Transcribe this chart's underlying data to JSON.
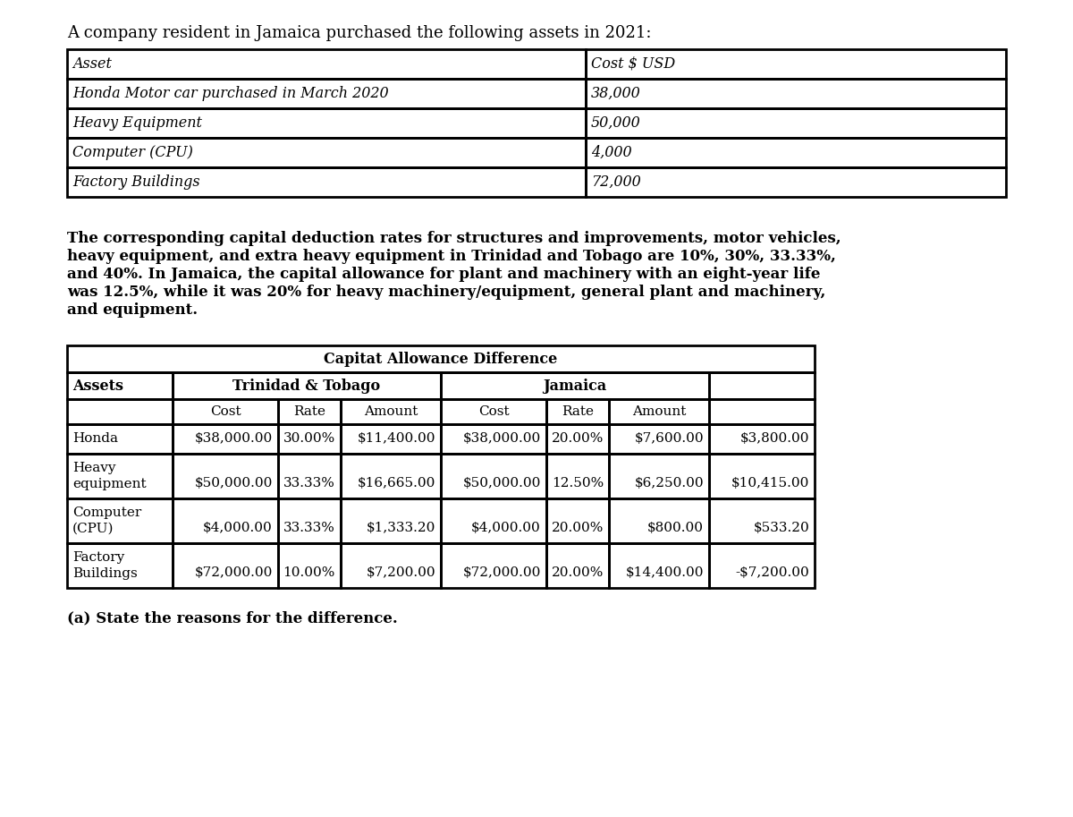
{
  "title_text": "A company resident in Jamaica purchased the following assets in 2021:",
  "table1_headers": [
    "Asset",
    "Cost $ USD"
  ],
  "table1_rows": [
    [
      "Honda Motor car purchased in March 2020",
      "38,000"
    ],
    [
      "Heavy Equipment",
      "50,000"
    ],
    [
      "Computer (CPU)",
      "4,000"
    ],
    [
      "Factory Buildings",
      "72,000"
    ]
  ],
  "paragraph_lines": [
    "The corresponding capital deduction rates for structures and improvements, motor vehicles,",
    "heavy equipment, and extra heavy equipment in Trinidad and Tobago are 10%, 30%, 33.33%,",
    "and 40%. In Jamaica, the capital allowance for plant and machinery with an eight-year life",
    "was 12.5%, while it was 20% for heavy machinery/equipment, general plant and machinery,",
    "and equipment."
  ],
  "table2_main_header": "Capitat Allowance Difference",
  "table2_col_headers": [
    "",
    "Cost",
    "Rate",
    "Amount",
    "Cost",
    "Rate",
    "Amount",
    ""
  ],
  "table2_rows": [
    [
      "Honda",
      "$38,000.00",
      "30.00%",
      "$11,400.00",
      "$38,000.00",
      "20.00%",
      "$7,600.00",
      "$3,800.00"
    ],
    [
      "Heavy\nequipment",
      "$50,000.00",
      "33.33%",
      "$16,665.00",
      "$50,000.00",
      "12.50%",
      "$6,250.00",
      "$10,415.00"
    ],
    [
      "Computer\n(CPU)",
      "$4,000.00",
      "33.33%",
      "$1,333.20",
      "$4,000.00",
      "20.00%",
      "$800.00",
      "$533.20"
    ],
    [
      "Factory\nBuildings",
      "$72,000.00",
      "10.00%",
      "$7,200.00",
      "$72,000.00",
      "20.00%",
      "$14,400.00",
      "-$7,200.00"
    ]
  ],
  "footnote": "(a) State the reasons for the difference.",
  "bg_color": "#ffffff",
  "text_color": "#000000",
  "lw_outer": 2.0,
  "lw_inner": 1.0
}
